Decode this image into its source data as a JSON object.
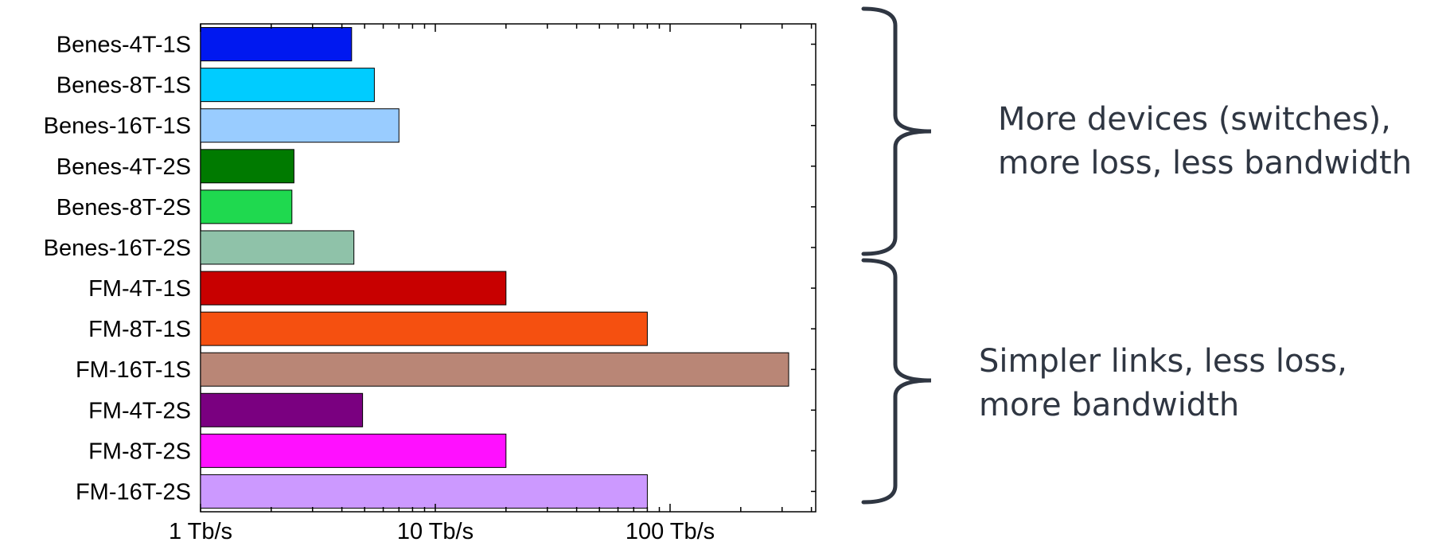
{
  "chart_data": {
    "type": "bar",
    "orientation": "horizontal",
    "x_scale": "log",
    "xlim": [
      1,
      400
    ],
    "x_unit": "Tb/s",
    "categories": [
      "Benes-4T-1S",
      "Benes-8T-1S",
      "Benes-16T-1S",
      "Benes-4T-2S",
      "Benes-8T-2S",
      "Benes-16T-2S",
      "FM-4T-1S",
      "FM-8T-1S",
      "FM-16T-1S",
      "FM-4T-2S",
      "FM-8T-2S",
      "FM-16T-2S"
    ],
    "values": [
      4.4,
      5.5,
      7.0,
      2.5,
      2.45,
      4.5,
      20,
      80,
      320,
      4.9,
      20,
      80
    ],
    "colors": [
      "#0018f0",
      "#00ccff",
      "#99ccff",
      "#007a00",
      "#1fd94f",
      "#8fc2a9",
      "#c80000",
      "#f55010",
      "#b98676",
      "#7a0080",
      "#ff10ff",
      "#cc99ff"
    ],
    "x_ticks": [
      {
        "value": 1,
        "label": "1 Tb/s"
      },
      {
        "value": 10,
        "label": "10 Tb/s"
      },
      {
        "value": 100,
        "label": "100 Tb/s"
      }
    ],
    "title": "",
    "xlabel": "",
    "ylabel": "",
    "grid": false,
    "legend": "none"
  },
  "annotations": {
    "top": [
      "More devices (switches),",
      "more loss, less bandwidth"
    ],
    "bottom": [
      "Simpler links, less loss,",
      "more bandwidth"
    ]
  },
  "colors": {
    "annotation_text": "#2f3642",
    "brace": "#2f3642",
    "axis": "#000000"
  }
}
